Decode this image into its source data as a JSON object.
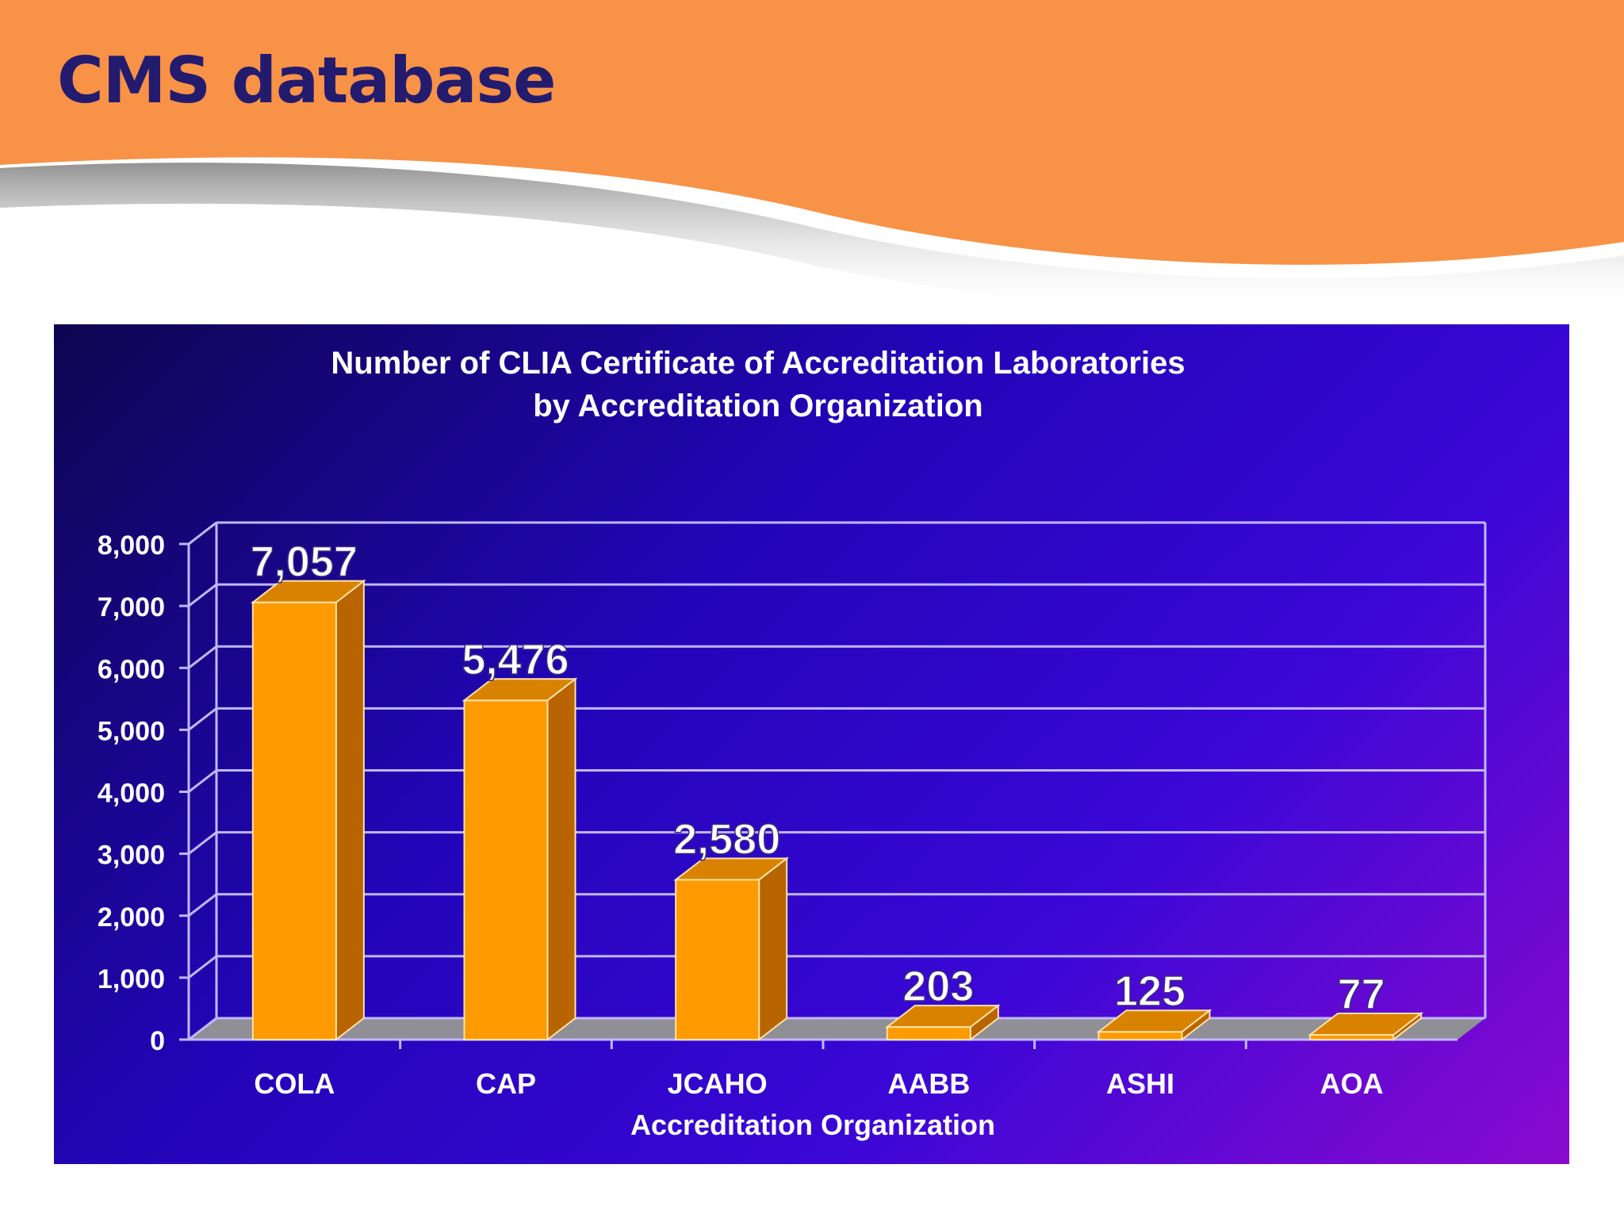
{
  "slide": {
    "title": "CMS database"
  },
  "colors": {
    "banner": "#f89247",
    "title_text": "#231b6e",
    "bar_front": "#ff9a00",
    "bar_side": "#b86400",
    "bar_top": "#d98200",
    "chart_text": "#ffffff",
    "grid": "#c2b6ff"
  },
  "chart_data": {
    "type": "bar",
    "title": "Number of CLIA Certificate of Accreditation  Laboratories",
    "subtitle": "by Accreditation  Organization",
    "xlabel": "Accreditation  Organization",
    "ylabel": "",
    "categories": [
      "COLA",
      "CAP",
      "JCAHO",
      "AABB",
      "ASHI",
      "AOA"
    ],
    "values": [
      7057,
      5476,
      2580,
      203,
      125,
      77
    ],
    "data_labels": [
      "7,057",
      "5,476",
      "2,580",
      "203",
      "125",
      "77"
    ],
    "ylim": [
      0,
      8000
    ],
    "yticks": [
      0,
      1000,
      2000,
      3000,
      4000,
      5000,
      6000,
      7000,
      8000
    ],
    "ytick_labels": [
      "0",
      "1,000",
      "2,000",
      "3,000",
      "4,000",
      "5,000",
      "6,000",
      "7,000",
      "8,000"
    ],
    "grid": true,
    "style": "3d"
  }
}
